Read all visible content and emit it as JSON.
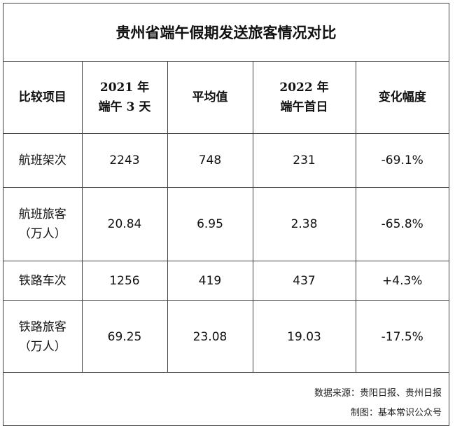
{
  "title": "贵州省端午假期发送旅客情况对比",
  "headers": [
    [
      "比较项目"
    ],
    [
      "2021 年",
      "端午 3 天"
    ],
    [
      "平均值"
    ],
    [
      "2022 年",
      "端午首日"
    ],
    [
      "变化幅度"
    ]
  ],
  "rows": [
    {
      "label": [
        "航班架次"
      ],
      "v2021": "2243",
      "avg": "748",
      "v2022": "231",
      "change": "-69.1%"
    },
    {
      "label": [
        "航班旅客",
        "（万人）"
      ],
      "v2021": "20.84",
      "avg": "6.95",
      "v2022": "2.38",
      "change": "-65.8%"
    },
    {
      "label": [
        "铁路车次"
      ],
      "v2021": "1256",
      "avg": "419",
      "v2022": "437",
      "change": "+4.3%"
    },
    {
      "label": [
        "铁路旅客",
        "（万人）"
      ],
      "v2021": "69.25",
      "avg": "23.08",
      "v2022": "19.03",
      "change": "-17.5%"
    }
  ],
  "footer": {
    "source": "数据来源：贵阳日报、贵州日报",
    "maker": "制图：基本常识公众号"
  }
}
